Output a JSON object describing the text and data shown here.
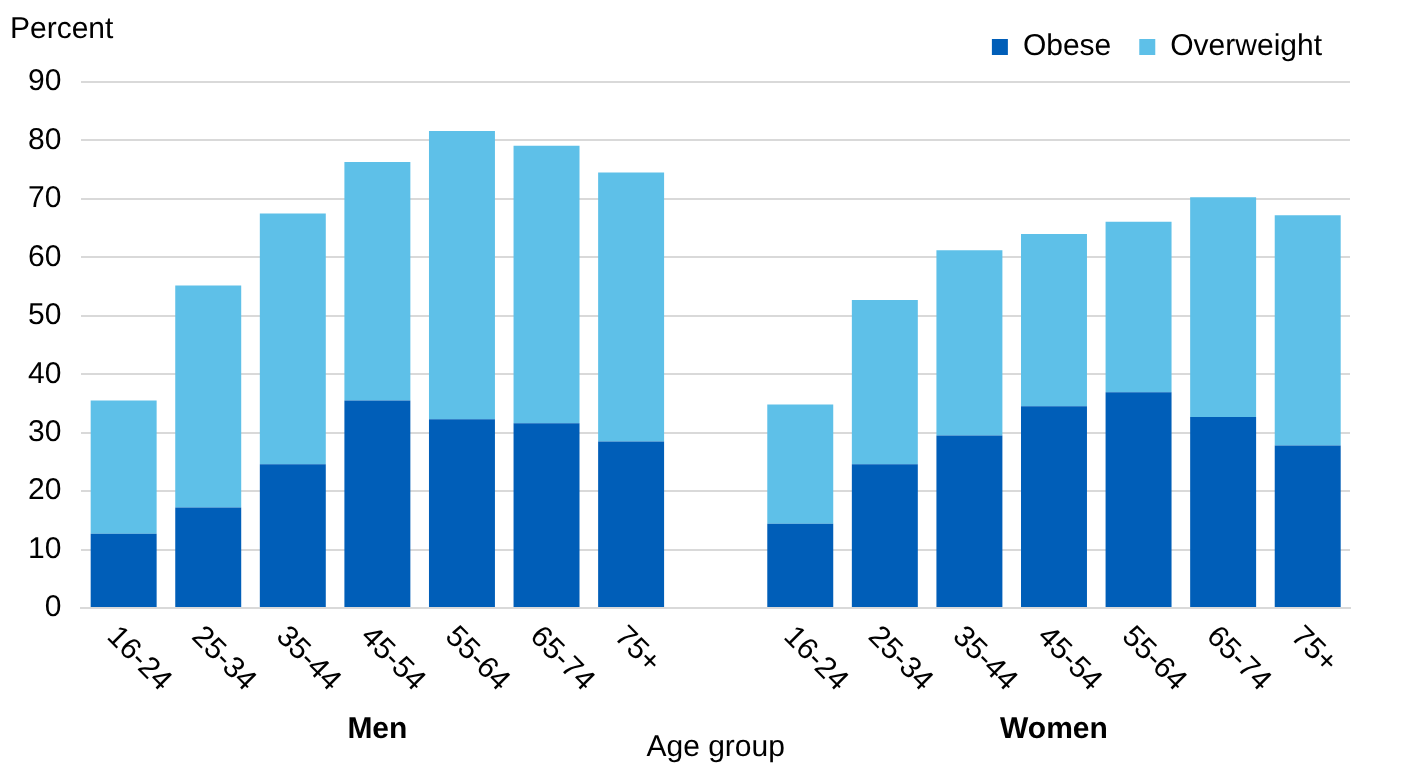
{
  "chart_data": {
    "type": "bar",
    "stacked": true,
    "ylabel": "Percent",
    "xlabel": "Age group",
    "categories": [
      "16-24",
      "25-34",
      "35-44",
      "45-54",
      "55-64",
      "65-74",
      "75+",
      null,
      "16-24",
      "25-34",
      "35-44",
      "45-54",
      "55-64",
      "65-74",
      "75+"
    ],
    "series": [
      {
        "name": "Obese",
        "color": "#005eb8",
        "values": [
          12.7,
          17.2,
          24.6,
          35.5,
          32.3,
          31.6,
          28.5,
          null,
          14.4,
          24.6,
          29.5,
          34.5,
          36.9,
          32.7,
          27.8
        ]
      },
      {
        "name": "Overweight",
        "color": "#5ec0e8",
        "values": [
          22.8,
          38.0,
          42.9,
          40.8,
          49.3,
          47.5,
          46.0,
          null,
          20.4,
          28.1,
          31.7,
          29.5,
          29.2,
          37.6,
          39.4
        ]
      }
    ],
    "annotations": [
      "Men",
      "Women"
    ],
    "ylim": [
      0,
      90
    ],
    "yticks": [
      0,
      10,
      20,
      30,
      40,
      50,
      60,
      70,
      80,
      90
    ],
    "grid": "y",
    "legend": "top right"
  }
}
